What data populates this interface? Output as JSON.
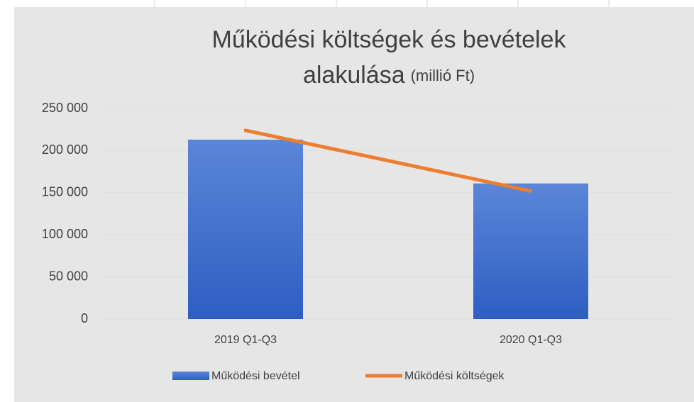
{
  "chart_data": {
    "type": "bar-line",
    "title": "Működési költségek és bevételek",
    "title_line2": "alakulása",
    "unit": "(millió Ft)",
    "categories": [
      "2019 Q1-Q3",
      "2020 Q1-Q3"
    ],
    "series": [
      {
        "name": "Működési bevétel",
        "type": "bar",
        "color": "#4472c4",
        "values": [
          213000,
          161000
        ]
      },
      {
        "name": "Működési költségek",
        "type": "line",
        "color": "#ed7d31",
        "values": [
          224000,
          152000
        ]
      }
    ],
    "ylim": [
      0,
      250000
    ],
    "yticks": [
      0,
      {
        "value": 50000,
        "label": "50 000"
      },
      {
        "value": 100000,
        "label": "100 000"
      },
      {
        "value": 150000,
        "label": "150 000"
      },
      {
        "value": 200000,
        "label": "200 000"
      },
      {
        "value": 250000,
        "label": "250 000"
      }
    ],
    "grid": true,
    "legend": "bottom"
  }
}
